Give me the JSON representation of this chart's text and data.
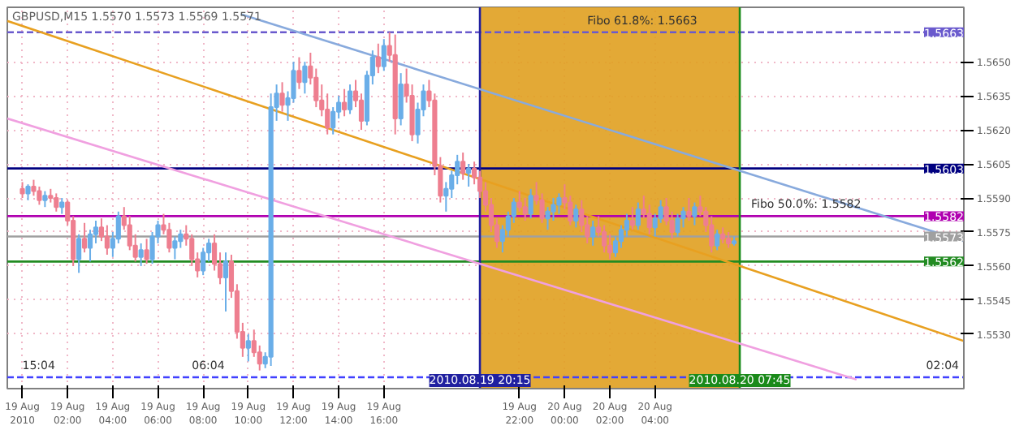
{
  "chart_data": {
    "type": "candlestick",
    "annotations": [
      "GBPUSD,M15  1.5570 1.5573 1.5569 1.5571",
      {
        "text": "Fibo 61.8%: 1.5663",
        "x": "2010-08-20T01:00",
        "y": 1.5663
      },
      {
        "text": "Fibo 50.0%: 1.5582",
        "x": "2010-08-20T08:15",
        "y": 1.5582
      },
      {
        "text": "15:04",
        "x": "2010-08-19T00:00",
        "y": 1.5511
      },
      {
        "text": "06:04",
        "x": "2010-08-19T07:30",
        "y": 1.5511
      },
      {
        "text": "02:04",
        "x": "2010-08-20T16:00",
        "y": 1.5511
      }
    ],
    "colors": [
      "#ee7f90",
      "#6aaee8",
      "#ee7f90",
      "#ee7f90",
      "#6aaee8",
      "#ee7f90",
      "#ee7f90",
      "#6aaee8",
      "#ee7f90",
      "#ee7f90",
      "#6aaee8",
      "#ee7f90",
      "#6aaee8",
      "#6aaee8",
      "#ee7f90",
      "#ee7f90",
      "#6aaee8",
      "#6aaee8",
      "#ee7f90",
      "#ee7f90",
      "#ee7f90",
      "#6aaee8",
      "#ee7f90",
      "#6aaee8",
      "#6aaee8",
      "#ee7f90",
      "#ee7f90",
      "#6aaee8",
      "#6aaee8",
      "#ee7f90",
      "#ee7f90",
      "#ee7f90",
      "#6aaee8",
      "#6aaee8",
      "#ee7f90",
      "#ee7f90",
      "#6aaee8",
      "#ee7f90",
      "#ee7f90",
      "#ee7f90",
      "#6aaee8",
      "#ee7f90",
      "#ee7f90",
      "#6aaee8",
      "#6aaee8",
      "#6aaee8",
      "#ee7f90",
      "#6aaee8",
      "#6aaee8",
      "#ee7f90",
      "#6aaee8",
      "#ee7f90",
      "#ee7f90",
      "#ee7f90",
      "#ee7f90",
      "#6aaee8",
      "#6aaee8",
      "#ee7f90",
      "#6aaee8",
      "#ee7f90",
      "#ee7f90",
      "#6aaee8",
      "#6aaee8",
      "#ee7f90",
      "#6aaee8",
      "#ee7f90",
      "#ee7f90",
      "#6aaee8",
      "#ee7f90",
      "#ee7f90",
      "#6aaee8",
      "#6aaee8",
      "#ee7f90",
      "#ee7f90",
      "#ee7f90",
      "#6aaee8",
      "#6aaee8",
      "#6aaee8",
      "#ee7f90",
      "#6aaee8",
      "#ee7f90",
      "#ee7f90",
      "#ee7f90",
      "#ee7f90",
      "#ee7f90",
      "#6aaee8",
      "#6aaee8",
      "#6aaee8",
      "#ee7f90",
      "#ee7f90",
      "#6aaee8",
      "#ee7f90",
      "#ee7f90",
      "#6aaee8",
      "#6aaee8",
      "#6aaee8",
      "#ee7f90",
      "#ee7f90",
      "#6aaee8",
      "#ee7f90",
      "#ee7f90",
      "#6aaee8",
      "#ee7f90",
      "#ee7f90",
      "#ee7f90",
      "#6aaee8",
      "#6aaee8",
      "#6aaee8",
      "#ee7f90",
      "#6aaee8",
      "#ee7f90",
      "#ee7f90",
      "#6aaee8",
      "#6aaee8",
      "#ee7f90",
      "#ee7f90",
      "#6aaee8",
      "#6aaee8",
      "#ee7f90",
      "#6aaee8",
      "#ee7f90",
      "#ee7f90",
      "#ee7f90",
      "#6aaee8",
      "#ee7f90",
      "#ee7f90",
      "#6aaee8"
    ],
    "x": [
      "2010-08-19T00:00",
      "2010-08-19T00:15",
      "2010-08-19T00:30",
      "2010-08-19T00:45",
      "2010-08-19T01:00",
      "2010-08-19T01:15",
      "2010-08-19T01:30",
      "2010-08-19T01:45",
      "2010-08-19T02:00",
      "2010-08-19T02:15",
      "2010-08-19T02:30",
      "2010-08-19T02:45",
      "2010-08-19T03:00",
      "2010-08-19T03:15",
      "2010-08-19T03:30",
      "2010-08-19T03:45",
      "2010-08-19T04:00",
      "2010-08-19T04:15",
      "2010-08-19T04:30",
      "2010-08-19T04:45",
      "2010-08-19T05:00",
      "2010-08-19T05:15",
      "2010-08-19T05:30",
      "2010-08-19T05:45",
      "2010-08-19T06:00",
      "2010-08-19T06:15",
      "2010-08-19T06:30",
      "2010-08-19T06:45",
      "2010-08-19T07:00",
      "2010-08-19T07:15",
      "2010-08-19T07:30",
      "2010-08-19T07:45",
      "2010-08-19T08:00",
      "2010-08-19T08:15",
      "2010-08-19T08:30",
      "2010-08-19T08:45",
      "2010-08-19T09:00",
      "2010-08-19T09:15",
      "2010-08-19T09:30",
      "2010-08-19T09:45",
      "2010-08-19T10:00",
      "2010-08-19T10:15",
      "2010-08-19T10:30",
      "2010-08-19T10:45",
      "2010-08-19T11:00",
      "2010-08-19T11:15",
      "2010-08-19T11:30",
      "2010-08-19T11:45",
      "2010-08-19T12:00",
      "2010-08-19T12:15",
      "2010-08-19T12:30",
      "2010-08-19T12:45",
      "2010-08-19T13:00",
      "2010-08-19T13:15",
      "2010-08-19T13:30",
      "2010-08-19T13:45",
      "2010-08-19T14:00",
      "2010-08-19T14:15",
      "2010-08-19T14:30",
      "2010-08-19T14:45",
      "2010-08-19T15:00",
      "2010-08-19T15:15",
      "2010-08-19T15:30",
      "2010-08-19T15:45",
      "2010-08-19T16:00",
      "2010-08-19T16:15",
      "2010-08-19T16:30",
      "2010-08-19T16:45",
      "2010-08-19T17:00",
      "2010-08-19T17:15",
      "2010-08-19T17:30",
      "2010-08-19T17:45",
      "2010-08-19T18:00",
      "2010-08-19T18:15",
      "2010-08-19T18:30",
      "2010-08-19T18:45",
      "2010-08-19T19:00",
      "2010-08-19T19:15",
      "2010-08-19T19:30",
      "2010-08-19T19:45",
      "2010-08-19T20:00",
      "2010-08-19T20:15",
      "2010-08-19T20:30",
      "2010-08-19T20:45",
      "2010-08-19T21:00",
      "2010-08-19T21:15",
      "2010-08-19T21:30",
      "2010-08-19T21:45",
      "2010-08-19T22:00",
      "2010-08-19T22:15",
      "2010-08-19T22:30",
      "2010-08-19T22:45",
      "2010-08-19T23:00",
      "2010-08-19T23:15",
      "2010-08-19T23:30",
      "2010-08-19T23:45",
      "2010-08-20T00:00",
      "2010-08-20T00:15",
      "2010-08-20T00:30",
      "2010-08-20T00:45",
      "2010-08-20T01:00",
      "2010-08-20T01:15",
      "2010-08-20T01:30",
      "2010-08-20T01:45",
      "2010-08-20T02:00",
      "2010-08-20T02:15",
      "2010-08-20T02:30",
      "2010-08-20T02:45",
      "2010-08-20T03:00",
      "2010-08-20T03:15",
      "2010-08-20T03:30",
      "2010-08-20T03:45",
      "2010-08-20T04:00",
      "2010-08-20T04:15",
      "2010-08-20T04:30",
      "2010-08-20T04:45",
      "2010-08-20T05:00",
      "2010-08-20T05:15",
      "2010-08-20T05:30",
      "2010-08-20T05:45",
      "2010-08-20T06:00",
      "2010-08-20T06:15",
      "2010-08-20T06:30",
      "2010-08-20T06:45",
      "2010-08-20T07:00",
      "2010-08-20T07:15",
      "2010-08-20T07:30"
    ],
    "ohlc": [
      [
        1.5594,
        1.5597,
        1.559,
        1.5592
      ],
      [
        1.5592,
        1.5596,
        1.5589,
        1.5595
      ],
      [
        1.5595,
        1.5598,
        1.5591,
        1.5593
      ],
      [
        1.5593,
        1.5595,
        1.5587,
        1.5589
      ],
      [
        1.5589,
        1.5593,
        1.5586,
        1.5591
      ],
      [
        1.5591,
        1.5594,
        1.5588,
        1.559
      ],
      [
        1.559,
        1.5592,
        1.5584,
        1.5586
      ],
      [
        1.5586,
        1.559,
        1.5583,
        1.5588
      ],
      [
        1.5588,
        1.5589,
        1.5578,
        1.558
      ],
      [
        1.558,
        1.5582,
        1.556,
        1.5563
      ],
      [
        1.5563,
        1.5574,
        1.5557,
        1.5572
      ],
      [
        1.5572,
        1.5579,
        1.5566,
        1.5568
      ],
      [
        1.5568,
        1.5576,
        1.5562,
        1.5574
      ],
      [
        1.5574,
        1.558,
        1.557,
        1.5577
      ],
      [
        1.5577,
        1.5581,
        1.5571,
        1.5573
      ],
      [
        1.5573,
        1.5578,
        1.5565,
        1.5568
      ],
      [
        1.5568,
        1.5575,
        1.5564,
        1.5572
      ],
      [
        1.5572,
        1.5584,
        1.557,
        1.5582
      ],
      [
        1.5582,
        1.5586,
        1.5576,
        1.5578
      ],
      [
        1.5578,
        1.5582,
        1.5567,
        1.5569
      ],
      [
        1.5569,
        1.5574,
        1.5562,
        1.5564
      ],
      [
        1.5564,
        1.557,
        1.556,
        1.5567
      ],
      [
        1.5567,
        1.5572,
        1.5561,
        1.5563
      ],
      [
        1.5563,
        1.5575,
        1.5561,
        1.5573
      ],
      [
        1.5573,
        1.558,
        1.557,
        1.5578
      ],
      [
        1.5578,
        1.5583,
        1.5574,
        1.5576
      ],
      [
        1.5576,
        1.5579,
        1.5566,
        1.5568
      ],
      [
        1.5568,
        1.5573,
        1.5563,
        1.5571
      ],
      [
        1.5571,
        1.5576,
        1.5568,
        1.5574
      ],
      [
        1.5574,
        1.5578,
        1.5569,
        1.5572
      ],
      [
        1.5572,
        1.5574,
        1.556,
        1.5563
      ],
      [
        1.5563,
        1.5566,
        1.5555,
        1.5558
      ],
      [
        1.5558,
        1.5568,
        1.5556,
        1.5566
      ],
      [
        1.5566,
        1.5572,
        1.5562,
        1.557
      ],
      [
        1.557,
        1.5574,
        1.5558,
        1.5561
      ],
      [
        1.5561,
        1.5566,
        1.5552,
        1.5555
      ],
      [
        1.5555,
        1.5566,
        1.554,
        1.5562
      ],
      [
        1.5562,
        1.5565,
        1.5546,
        1.5549
      ],
      [
        1.5549,
        1.5552,
        1.5528,
        1.5531
      ],
      [
        1.5531,
        1.5535,
        1.552,
        1.5524
      ],
      [
        1.5524,
        1.553,
        1.5518,
        1.5527
      ],
      [
        1.5527,
        1.5532,
        1.552,
        1.5522
      ],
      [
        1.5522,
        1.5525,
        1.5514,
        1.5517
      ],
      [
        1.5517,
        1.5522,
        1.5515,
        1.552
      ],
      [
        1.552,
        1.5636,
        1.5516,
        1.563
      ],
      [
        1.563,
        1.564,
        1.5624,
        1.5636
      ],
      [
        1.5636,
        1.5641,
        1.5628,
        1.5631
      ],
      [
        1.5631,
        1.5637,
        1.5624,
        1.5634
      ],
      [
        1.5634,
        1.565,
        1.5632,
        1.5646
      ],
      [
        1.5646,
        1.5652,
        1.5638,
        1.5641
      ],
      [
        1.5641,
        1.565,
        1.5636,
        1.5648
      ],
      [
        1.5648,
        1.5654,
        1.564,
        1.5643
      ],
      [
        1.5643,
        1.5647,
        1.563,
        1.5633
      ],
      [
        1.5633,
        1.564,
        1.5626,
        1.5629
      ],
      [
        1.5629,
        1.5636,
        1.5618,
        1.5621
      ],
      [
        1.5621,
        1.563,
        1.5618,
        1.5628
      ],
      [
        1.5628,
        1.5635,
        1.5625,
        1.5632
      ],
      [
        1.5632,
        1.5638,
        1.5626,
        1.5629
      ],
      [
        1.5629,
        1.564,
        1.5627,
        1.5637
      ],
      [
        1.5637,
        1.5642,
        1.563,
        1.5633
      ],
      [
        1.5633,
        1.5636,
        1.562,
        1.5624
      ],
      [
        1.5624,
        1.5646,
        1.5622,
        1.5644
      ],
      [
        1.5644,
        1.5655,
        1.564,
        1.5652
      ],
      [
        1.5652,
        1.5658,
        1.5645,
        1.5648
      ],
      [
        1.5648,
        1.566,
        1.5646,
        1.5657
      ],
      [
        1.5657,
        1.5663,
        1.565,
        1.5653
      ],
      [
        1.5653,
        1.5662,
        1.5618,
        1.5625
      ],
      [
        1.5625,
        1.5645,
        1.5622,
        1.564
      ],
      [
        1.564,
        1.5647,
        1.5632,
        1.5635
      ],
      [
        1.5635,
        1.564,
        1.5615,
        1.5618
      ],
      [
        1.5618,
        1.5632,
        1.5614,
        1.5629
      ],
      [
        1.5629,
        1.564,
        1.5626,
        1.5637
      ],
      [
        1.5637,
        1.5642,
        1.563,
        1.5633
      ],
      [
        1.5633,
        1.5636,
        1.56,
        1.5604
      ],
      [
        1.5604,
        1.5608,
        1.5588,
        1.5591
      ],
      [
        1.5591,
        1.5597,
        1.5584,
        1.5594
      ],
      [
        1.5594,
        1.5602,
        1.559,
        1.56
      ],
      [
        1.56,
        1.5609,
        1.5596,
        1.5606
      ],
      [
        1.5606,
        1.561,
        1.5598,
        1.5601
      ],
      [
        1.5601,
        1.5605,
        1.5595,
        1.5603
      ],
      [
        1.5603,
        1.5606,
        1.5596,
        1.5599
      ],
      [
        1.5599,
        1.5602,
        1.559,
        1.5593
      ],
      [
        1.5593,
        1.5597,
        1.5584,
        1.5587
      ],
      [
        1.5587,
        1.559,
        1.5575,
        1.5578
      ],
      [
        1.5578,
        1.5581,
        1.5568,
        1.5571
      ],
      [
        1.5571,
        1.5578,
        1.5566,
        1.5576
      ],
      [
        1.5576,
        1.5584,
        1.5573,
        1.5582
      ],
      [
        1.5582,
        1.559,
        1.5579,
        1.5588
      ],
      [
        1.5588,
        1.5593,
        1.5584,
        1.5586
      ],
      [
        1.5586,
        1.559,
        1.558,
        1.5583
      ],
      [
        1.5583,
        1.5594,
        1.5581,
        1.5591
      ],
      [
        1.5591,
        1.5597,
        1.5587,
        1.5589
      ],
      [
        1.5589,
        1.5592,
        1.5579,
        1.5581
      ],
      [
        1.5581,
        1.5586,
        1.5576,
        1.5584
      ],
      [
        1.5584,
        1.559,
        1.558,
        1.5587
      ],
      [
        1.5587,
        1.5592,
        1.5583,
        1.559
      ],
      [
        1.559,
        1.5596,
        1.5585,
        1.5588
      ],
      [
        1.5588,
        1.5591,
        1.5578,
        1.558
      ],
      [
        1.558,
        1.5587,
        1.5577,
        1.5585
      ],
      [
        1.5585,
        1.5589,
        1.5575,
        1.5578
      ],
      [
        1.5578,
        1.5582,
        1.557,
        1.5573
      ],
      [
        1.5573,
        1.558,
        1.5569,
        1.5577
      ],
      [
        1.5577,
        1.5582,
        1.5573,
        1.5575
      ],
      [
        1.5575,
        1.5578,
        1.5566,
        1.5569
      ],
      [
        1.5569,
        1.5574,
        1.5563,
        1.5566
      ],
      [
        1.5566,
        1.5573,
        1.5564,
        1.5571
      ],
      [
        1.5571,
        1.5578,
        1.5568,
        1.5576
      ],
      [
        1.5576,
        1.5583,
        1.5573,
        1.558
      ],
      [
        1.558,
        1.5586,
        1.5576,
        1.5578
      ],
      [
        1.5578,
        1.5588,
        1.5576,
        1.5585
      ],
      [
        1.5585,
        1.5591,
        1.5581,
        1.5583
      ],
      [
        1.5583,
        1.5587,
        1.5574,
        1.5577
      ],
      [
        1.5577,
        1.5583,
        1.5573,
        1.5581
      ],
      [
        1.5581,
        1.5589,
        1.5579,
        1.5586
      ],
      [
        1.5586,
        1.559,
        1.5578,
        1.558
      ],
      [
        1.558,
        1.5584,
        1.5572,
        1.5575
      ],
      [
        1.5575,
        1.5583,
        1.5573,
        1.5581
      ],
      [
        1.5581,
        1.5586,
        1.5577,
        1.5584
      ],
      [
        1.5584,
        1.559,
        1.558,
        1.5582
      ],
      [
        1.5582,
        1.5588,
        1.5578,
        1.5586
      ],
      [
        1.5586,
        1.5591,
        1.5582,
        1.5584
      ],
      [
        1.5584,
        1.5586,
        1.5575,
        1.5578
      ],
      [
        1.5578,
        1.5582,
        1.5566,
        1.5569
      ],
      [
        1.5569,
        1.5576,
        1.5567,
        1.5574
      ],
      [
        1.5574,
        1.5577,
        1.557,
        1.5572
      ],
      [
        1.5572,
        1.5575,
        1.5568,
        1.557
      ],
      [
        1.557,
        1.5573,
        1.5569,
        1.5571
      ]
    ],
    "series": [
      {
        "type": "line",
        "color": "#e8a020",
        "x": [
          "2010-08-18T23:20",
          "2010-08-20T17:40"
        ],
        "values": [
          1.5668,
          1.5527
        ]
      },
      {
        "type": "line",
        "color": "#88aadd",
        "x": [
          "2010-08-19T09:40",
          "2010-08-20T17:40"
        ],
        "values": [
          1.5671,
          1.5571
        ]
      },
      {
        "type": "line",
        "color": "#f0a0e0",
        "x": [
          "2010-08-18T23:20",
          "2010-08-20T12:55"
        ],
        "values": [
          1.5625,
          1.551
        ]
      }
    ],
    "ref_lines": [
      {
        "axis": "y",
        "value": 1.5663,
        "label": "1.5663",
        "color": "#6a5acd",
        "line_style": "dashed"
      },
      {
        "axis": "y",
        "value": 1.5603,
        "label": "1.5603",
        "color": "#000080",
        "line_style": "solid"
      },
      {
        "axis": "y",
        "value": 1.5582,
        "label": "1.5582",
        "color": "#b000b0",
        "line_style": "solid"
      },
      {
        "axis": "y",
        "value": 1.5573,
        "label": "1.5573",
        "color": "#a0a0a0",
        "line_style": "solid"
      },
      {
        "axis": "y",
        "value": 1.5562,
        "label": "1.5562",
        "color": "#228b22",
        "line_style": "solid"
      },
      {
        "axis": "y",
        "value": 1.5511,
        "color": "#4040ff",
        "line_style": "dashed"
      },
      {
        "axis": "x",
        "value": "2010-08-19T20:15",
        "label": "2010.08.19 20:15",
        "color": "#2020a0",
        "line_style": "solid"
      },
      {
        "axis": "x",
        "value": "2010-08-20T07:45",
        "label": "2010.08.20 07:45",
        "color": "#1a8a1a",
        "line_style": "solid"
      }
    ],
    "bands": [
      {
        "axis": "x",
        "from": "2010-08-19T20:15",
        "to": "2010-08-20T07:45",
        "color": "#e0a020"
      }
    ],
    "xlim": [
      "2010-08-18T23:20",
      "2010-08-20T17:40"
    ],
    "xticks": [
      {
        "value": "2010-08-19T00:00",
        "label": "19 Aug 2010"
      },
      {
        "value": "2010-08-19T02:00",
        "label": "19 Aug 02:00"
      },
      {
        "value": "2010-08-19T04:00",
        "label": "19 Aug 04:00"
      },
      {
        "value": "2010-08-19T06:00",
        "label": "19 Aug 06:00"
      },
      {
        "value": "2010-08-19T08:00",
        "label": "19 Aug 08:00"
      },
      {
        "value": "2010-08-19T10:00",
        "label": "19 Aug 10:00"
      },
      {
        "value": "2010-08-19T12:00",
        "label": "19 Aug 12:00"
      },
      {
        "value": "2010-08-19T14:00",
        "label": "19 Aug 14:00"
      },
      {
        "value": "2010-08-19T16:00",
        "label": "19 Aug 16:00"
      },
      {
        "value": "2010-08-19T22:00",
        "label": "19 Aug 22:00"
      },
      {
        "value": "2010-08-20T00:00",
        "label": "20 Aug 00:00"
      },
      {
        "value": "2010-08-20T02:00",
        "label": "20 Aug 02:00"
      },
      {
        "value": "2010-08-20T04:00",
        "label": "20 Aug 04:00"
      }
    ],
    "ylim": [
      1.5506,
      1.5674
    ],
    "yticks": [
      {
        "value": 1.553,
        "label": "1.5530"
      },
      {
        "value": 1.5545,
        "label": "1.5545"
      },
      {
        "value": 1.556,
        "label": "1.5560"
      },
      {
        "value": 1.5575,
        "label": "1.5575"
      },
      {
        "value": 1.559,
        "label": "1.5590"
      },
      {
        "value": 1.5605,
        "label": "1.5605"
      },
      {
        "value": 1.562,
        "label": "1.5620"
      },
      {
        "value": 1.5635,
        "label": "1.5635"
      },
      {
        "value": 1.565,
        "label": "1.5650"
      }
    ],
    "grid": true,
    "line_style": "solid"
  }
}
